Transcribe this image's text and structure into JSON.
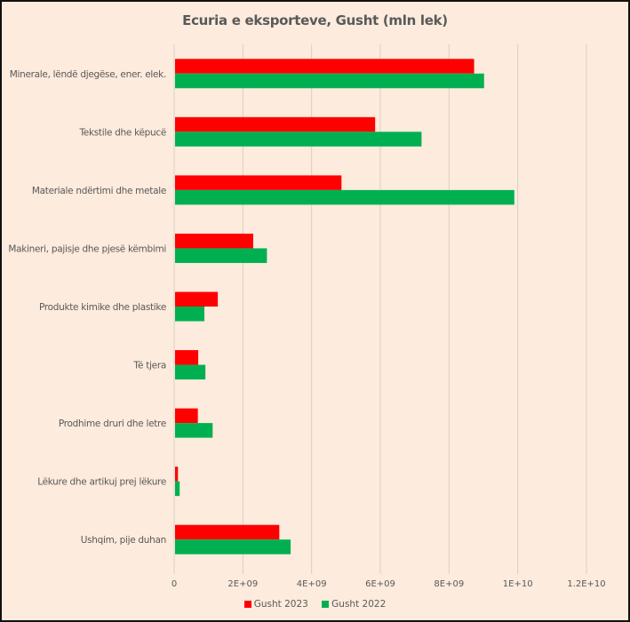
{
  "chart_data": {
    "type": "bar",
    "orientation": "horizontal",
    "title": "Ecuria e eksporteve, Gusht (mln lek)",
    "xlabel": "",
    "ylabel": "",
    "categories": [
      "Minerale, lëndë djegëse, ener. elek.",
      "Tekstile dhe këpucë",
      "Materiale ndërtimi dhe metale",
      "Makineri, pajisje dhe pjesë këmbimi",
      "Produkte kimike dhe plastike",
      "Të tjera",
      "Prodhime druri dhe letre",
      "Lëkure dhe artikuj prej lëkure",
      "Ushqim, pije duhan"
    ],
    "series": [
      {
        "name": "Gusht 2023",
        "color": "#ff0000",
        "values": [
          8730000000.0,
          5850000000.0,
          4870000000.0,
          2300000000.0,
          1270000000.0,
          700000000.0,
          690000000.0,
          110000000.0,
          3060000000.0
        ]
      },
      {
        "name": "Gusht 2022",
        "color": "#00b050",
        "values": [
          9020000000.0,
          7200000000.0,
          9900000000.0,
          2700000000.0,
          880000000.0,
          910000000.0,
          1120000000.0,
          160000000.0,
          3390000000.0
        ]
      }
    ],
    "xlim": [
      0,
      12000000000.0
    ],
    "xticks": [
      0,
      2000000000.0,
      4000000000.0,
      6000000000.0,
      8000000000.0,
      10000000000.0,
      12000000000.0
    ],
    "xtick_labels": [
      "0",
      "2E+09",
      "4E+09",
      "6E+09",
      "8E+09",
      "1E+10",
      "1.2E+10"
    ],
    "grid": true,
    "legend_position": "bottom"
  }
}
